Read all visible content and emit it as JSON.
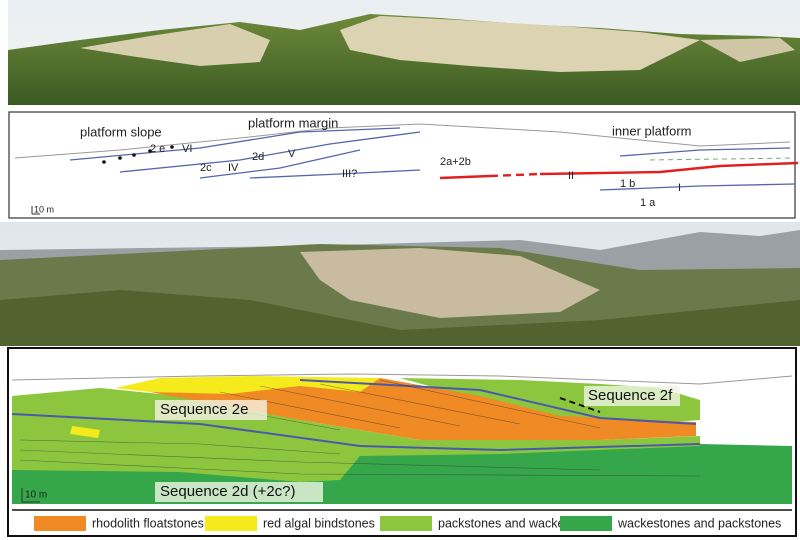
{
  "line_drawing": {
    "zones": [
      "platform slope",
      "platform margin",
      "inner platform"
    ],
    "labels": [
      "2 e",
      "VI",
      "2d",
      "V",
      "2c",
      "IV",
      "III?",
      "2a+2b",
      "II",
      "1 b",
      "I",
      "1 a"
    ],
    "scale": "10 m"
  },
  "facies_map": {
    "sequences": [
      "Sequence 2e",
      "Sequence 2f",
      "Sequence 2d (+2c?)"
    ],
    "scale": "10 m"
  },
  "legend": [
    {
      "label": "rhodolith floatstones",
      "color": "#f08a24"
    },
    {
      "label": "red algal bindstones",
      "color": "#f5ea1c"
    },
    {
      "label": "packstones and wackestones",
      "color": "#8cc63f"
    },
    {
      "label": "wackestones and packstones",
      "color": "#35a64a"
    }
  ]
}
